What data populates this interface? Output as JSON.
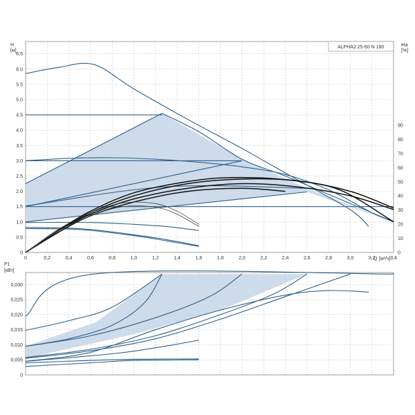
{
  "colors": {
    "curve": "#2e5f8a",
    "fill": "#c5d5e6",
    "grid": "#bbbbbb",
    "eta": "#111111",
    "thin": "#444444"
  },
  "chart_data": [
    {
      "type": "line",
      "title": "ALPHA2 25-60 N 180",
      "ylabel": "H",
      "yunit": "[м]",
      "xlabel": "Q",
      "xunit": "[м³/ч]",
      "y2label": "eta",
      "y2unit": "[%]",
      "xlim": [
        0,
        3.4
      ],
      "ylim": [
        0,
        6.9
      ],
      "y2lim": [
        0,
        90
      ],
      "grid": true,
      "xticks": [
        "0",
        "0,2",
        "0,4",
        "0,6",
        "0,8",
        "1,0",
        "1,2",
        "1,4",
        "1,6",
        "1,8",
        "2,0",
        "2,2",
        "2,4",
        "2,6",
        "2,8",
        "3,0",
        "3,2",
        "3,4"
      ],
      "yticks": [
        "0",
        "0.5",
        "1.0",
        "1.5",
        "2.0",
        "2.5",
        "3.0",
        "3.5",
        "4.0",
        "4.5",
        "5.0",
        "5.5",
        "6.0",
        "6.5"
      ],
      "y2ticks": [
        "0",
        "10",
        "20",
        "30",
        "40",
        "50",
        "60",
        "70",
        "80",
        "90"
      ],
      "shaded_region": [
        [
          0,
          2.25
        ],
        [
          1.26,
          4.55
        ],
        [
          2.0,
          3.05
        ],
        [
          2.6,
          2.1
        ],
        [
          3.4,
          1.0
        ],
        [
          2.6,
          1.98
        ],
        [
          0,
          1.0
        ]
      ],
      "series": [
        {
          "kind": "head",
          "points": [
            [
              0,
              5.85
            ],
            [
              0.3,
              6.05
            ],
            [
              0.63,
              6.15
            ],
            [
              1.0,
              5.35
            ],
            [
              1.5,
              4.35
            ],
            [
              2.0,
              3.4
            ],
            [
              2.5,
              2.4
            ],
            [
              3.0,
              1.4
            ],
            [
              3.17,
              0.85
            ]
          ]
        },
        {
          "kind": "head",
          "points": [
            [
              0,
              4.5
            ],
            [
              1.26,
              4.5
            ]
          ]
        },
        {
          "kind": "head",
          "points": [
            [
              1.26,
              4.55
            ],
            [
              1.6,
              3.95
            ],
            [
              2.0,
              3.05
            ],
            [
              2.4,
              2.5
            ],
            [
              2.8,
              1.9
            ],
            [
              3.1,
              1.45
            ],
            [
              3.4,
              1.0
            ]
          ]
        },
        {
          "kind": "head",
          "points": [
            [
              0,
              3.0
            ],
            [
              2.0,
              3.0
            ]
          ]
        },
        {
          "kind": "head",
          "points": [
            [
              0,
              3.0
            ],
            [
              0.4,
              3.08
            ],
            [
              0.8,
              3.1
            ],
            [
              1.2,
              3.05
            ],
            [
              1.6,
              2.95
            ],
            [
              2.0,
              2.8
            ],
            [
              2.4,
              2.55
            ],
            [
              2.8,
              2.05
            ],
            [
              3.2,
              1.3
            ],
            [
              3.4,
              1.0
            ]
          ]
        },
        {
          "kind": "head",
          "points": [
            [
              0,
              1.5
            ],
            [
              3.4,
              1.5
            ]
          ]
        },
        {
          "kind": "head",
          "points": [
            [
              0,
              2.25
            ],
            [
              1.26,
              4.55
            ]
          ]
        },
        {
          "kind": "head",
          "points": [
            [
              0,
              1.5
            ],
            [
              2.0,
              3.0
            ]
          ]
        },
        {
          "kind": "head",
          "points": [
            [
              0,
              1.0
            ],
            [
              2.6,
              1.98
            ]
          ]
        },
        {
          "kind": "head",
          "points": [
            [
              0,
              1.52
            ],
            [
              1.3,
              2.15
            ],
            [
              2.6,
              2.1
            ]
          ]
        },
        {
          "kind": "head",
          "points": [
            [
              0,
              0.98
            ],
            [
              0.6,
              0.98
            ],
            [
              1.0,
              0.92
            ],
            [
              1.3,
              0.85
            ],
            [
              1.6,
              0.72
            ]
          ]
        },
        {
          "kind": "head",
          "points": [
            [
              0,
              0.82
            ],
            [
              0.5,
              0.78
            ],
            [
              1.0,
              0.58
            ],
            [
              1.3,
              0.42
            ],
            [
              1.6,
              0.22
            ]
          ]
        },
        {
          "kind": "head",
          "points": [
            [
              0,
              0.78
            ],
            [
              0.5,
              0.75
            ],
            [
              1.0,
              0.55
            ],
            [
              1.3,
              0.38
            ],
            [
              1.6,
              0.2
            ]
          ]
        },
        {
          "kind": "eta",
          "points": [
            [
              0,
              0
            ],
            [
              0.3,
              0.7
            ],
            [
              0.6,
              1.25
            ],
            [
              1.0,
              1.75
            ],
            [
              1.5,
              2.1
            ],
            [
              2.0,
              2.25
            ],
            [
              2.5,
              2.15
            ],
            [
              3.0,
              1.85
            ],
            [
              3.4,
              1.4
            ]
          ]
        },
        {
          "kind": "eta",
          "points": [
            [
              0,
              0
            ],
            [
              0.3,
              0.7
            ],
            [
              0.6,
              1.3
            ],
            [
              1.0,
              1.85
            ],
            [
              1.5,
              2.25
            ],
            [
              2.0,
              2.4
            ],
            [
              2.5,
              2.35
            ],
            [
              3.0,
              2.0
            ],
            [
              3.4,
              1.45
            ]
          ]
        },
        {
          "kind": "eta",
          "points": [
            [
              0,
              0
            ],
            [
              0.3,
              0.72
            ],
            [
              0.6,
              1.35
            ],
            [
              1.0,
              1.95
            ],
            [
              1.5,
              2.32
            ],
            [
              1.9,
              2.45
            ],
            [
              2.4,
              2.38
            ],
            [
              2.9,
              2.05
            ],
            [
              3.4,
              1.0
            ]
          ]
        },
        {
          "kind": "eta",
          "points": [
            [
              0,
              0
            ],
            [
              0.3,
              0.65
            ],
            [
              0.6,
              1.2
            ],
            [
              1.0,
              1.65
            ],
            [
              1.5,
              2.0
            ],
            [
              2.0,
              2.1
            ],
            [
              2.4,
              2.0
            ]
          ]
        },
        {
          "kind": "eta2",
          "points": [
            [
              0,
              0
            ],
            [
              0.3,
              0.75
            ],
            [
              0.6,
              1.3
            ],
            [
              0.9,
              1.62
            ],
            [
              1.2,
              1.6
            ],
            [
              1.4,
              1.35
            ],
            [
              1.6,
              0.92
            ]
          ]
        },
        {
          "kind": "eta2",
          "points": [
            [
              0,
              0
            ],
            [
              0.3,
              0.7
            ],
            [
              0.6,
              1.2
            ],
            [
              0.9,
              1.5
            ],
            [
              1.2,
              1.48
            ],
            [
              1.4,
              1.25
            ],
            [
              1.6,
              0.85
            ]
          ]
        }
      ]
    },
    {
      "type": "line",
      "ylabel": "P1",
      "yunit": "[кВт]",
      "xlim": [
        0,
        3.4
      ],
      "ylim": [
        0,
        0.034
      ],
      "grid": true,
      "yticks": [
        "0",
        "0,005",
        "0,010",
        "0,015",
        "0,020",
        "0,025",
        "0,030"
      ],
      "shaded_region": [
        [
          0,
          0.0095
        ],
        [
          0.65,
          0.0175
        ],
        [
          1.26,
          0.0335
        ],
        [
          2.0,
          0.0335
        ],
        [
          2.6,
          0.0335
        ],
        [
          1.8,
          0.0215
        ],
        [
          1.0,
          0.0135
        ],
        [
          0,
          0.0055
        ]
      ],
      "series": [
        {
          "kind": "power",
          "points": [
            [
              0,
              0.0195
            ],
            [
              0.63,
              0.0335
            ],
            [
              3.4,
              0.0335
            ]
          ]
        },
        {
          "kind": "power",
          "points": [
            [
              0,
              0.0148
            ],
            [
              0.4,
              0.018
            ],
            [
              0.8,
              0.0225
            ],
            [
              1.26,
              0.0335
            ]
          ]
        },
        {
          "kind": "power",
          "points": [
            [
              0,
              0.0095
            ],
            [
              0.4,
              0.012
            ],
            [
              0.8,
              0.0165
            ],
            [
              1.1,
              0.024
            ],
            [
              1.26,
              0.0335
            ]
          ]
        },
        {
          "kind": "power",
          "points": [
            [
              0,
              0.0095
            ],
            [
              0.6,
              0.013
            ],
            [
              1.2,
              0.019
            ],
            [
              1.7,
              0.026
            ],
            [
              2.0,
              0.0335
            ]
          ]
        },
        {
          "kind": "power",
          "points": [
            [
              0,
              0.0058
            ],
            [
              0.6,
              0.0085
            ],
            [
              1.2,
              0.013
            ],
            [
              1.8,
              0.02
            ],
            [
              2.3,
              0.027
            ],
            [
              2.6,
              0.0335
            ]
          ]
        },
        {
          "kind": "power",
          "points": [
            [
              0,
              0.0055
            ],
            [
              0.6,
              0.008
            ],
            [
              1.2,
              0.012
            ],
            [
              1.8,
              0.0185
            ],
            [
              2.4,
              0.026
            ],
            [
              3.0,
              0.0335
            ]
          ]
        },
        {
          "kind": "power",
          "points": [
            [
              0,
              0.0045
            ],
            [
              0.6,
              0.0075
            ],
            [
              1.2,
              0.015
            ],
            [
              1.8,
              0.0215
            ],
            [
              2.4,
              0.0265
            ],
            [
              2.8,
              0.028
            ],
            [
              3.17,
              0.0275
            ]
          ]
        },
        {
          "kind": "power",
          "points": [
            [
              0,
              0.0045
            ],
            [
              0.8,
              0.007
            ],
            [
              1.2,
              0.009
            ],
            [
              1.6,
              0.0115
            ]
          ]
        },
        {
          "kind": "power",
          "points": [
            [
              0,
              0.004
            ],
            [
              0.6,
              0.0048
            ],
            [
              1.0,
              0.0052
            ],
            [
              1.6,
              0.0053
            ]
          ]
        },
        {
          "kind": "power",
          "points": [
            [
              0,
              0.0028
            ],
            [
              0.6,
              0.004
            ],
            [
              1.0,
              0.0048
            ],
            [
              1.6,
              0.005
            ]
          ]
        }
      ]
    }
  ]
}
